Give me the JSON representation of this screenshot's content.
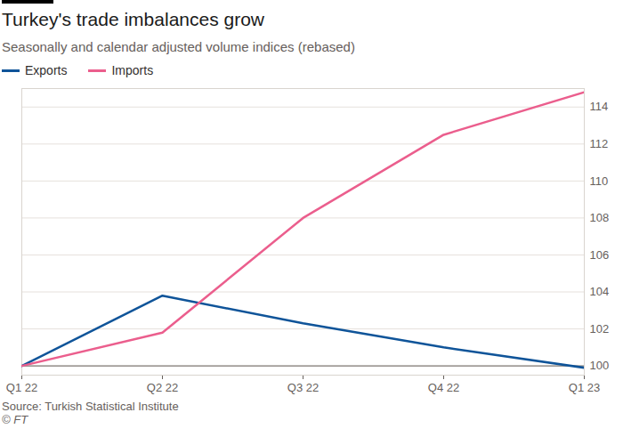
{
  "chart_data": {
    "type": "line",
    "title": "Turkey's trade imbalances grow",
    "subtitle": "Seasonally and calendar adjusted volume indices (rebased)",
    "categories": [
      "Q1 22",
      "Q2 22",
      "Q3 22",
      "Q4 22",
      "Q1 23"
    ],
    "series": [
      {
        "name": "Exports",
        "color": "#0f5499",
        "values": [
          100,
          103.8,
          102.3,
          101.0,
          99.9
        ]
      },
      {
        "name": "Imports",
        "color": "#eb5e8d",
        "values": [
          100,
          101.8,
          108.0,
          112.5,
          114.8
        ]
      }
    ],
    "ylim": [
      99.5,
      115
    ],
    "yticks": [
      100,
      102,
      104,
      106,
      108,
      110,
      112,
      114
    ],
    "grid": true,
    "legend": "top-left",
    "source": "Source: Turkish Statistical Institute",
    "credit": "© FT"
  }
}
